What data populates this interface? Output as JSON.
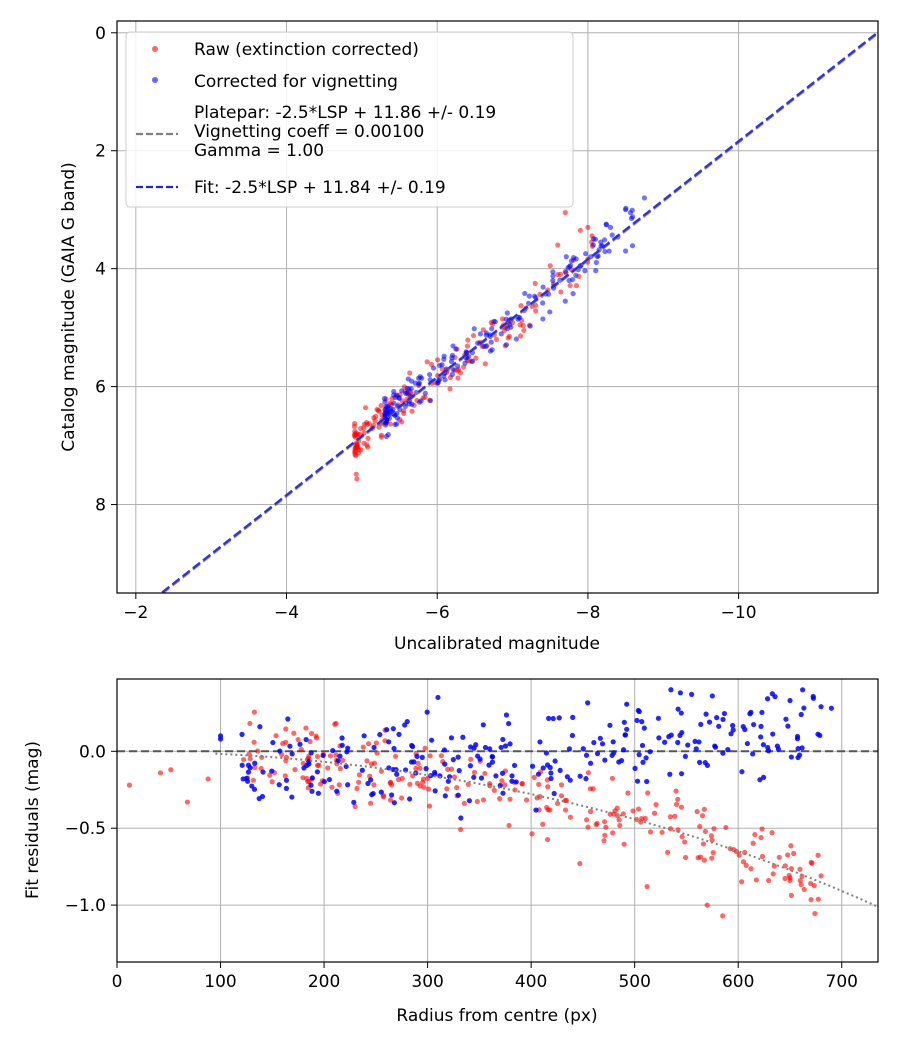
{
  "chart_data": [
    {
      "type": "scatter",
      "xlabel": "Uncalibrated magnitude",
      "ylabel": "Catalog magnitude (GAIA G band)",
      "xlim": [
        -1.75,
        -11.85
      ],
      "ylim": [
        -0.2,
        9.5
      ],
      "x_inverted": true,
      "y_inverted": true,
      "grid": true,
      "legend_position": "upper-left",
      "xticks": [
        -2,
        -4,
        -6,
        -8,
        -10
      ],
      "xtick_labels": [
        "−2",
        "−4",
        "−6",
        "−8",
        "−10"
      ],
      "yticks": [
        0,
        2,
        4,
        6,
        8
      ],
      "ytick_labels": [
        "0",
        "2",
        "4",
        "6",
        "8"
      ],
      "series": [
        {
          "name": "Raw (extinction corrected)",
          "kind": "scatter",
          "color": "#ff0000",
          "cloud": {
            "count": 170,
            "x_range": [
              -4.9,
              -8.1
            ],
            "intercept": 11.86,
            "spread": 0.18,
            "seed": 11
          },
          "points": [
            [
              -7.7,
              3.05
            ],
            [
              -7.9,
              3.35
            ],
            [
              -8.0,
              3.3
            ],
            [
              -8.05,
              3.55
            ],
            [
              -7.6,
              3.6
            ],
            [
              -7.5,
              3.95
            ],
            [
              -7.3,
              4.25
            ],
            [
              -7.6,
              4.1
            ]
          ]
        },
        {
          "name": "Corrected for vignetting",
          "kind": "scatter",
          "color": "#0000ff",
          "cloud": {
            "count": 190,
            "x_range": [
              -5.3,
              -8.6
            ],
            "intercept": 11.84,
            "spread": 0.16,
            "seed": 23
          },
          "points": [
            [
              -8.75,
              2.8
            ],
            [
              -8.5,
              3.0
            ],
            [
              -8.3,
              3.3
            ],
            [
              -8.1,
              3.5
            ],
            [
              -8.5,
              3.7
            ],
            [
              -7.9,
              3.95
            ],
            [
              -7.75,
              4.2
            ],
            [
              -7.7,
              4.55
            ]
          ]
        },
        {
          "name": "Platepar: -2.5*LSP + 11.86 +/- 0.19\nVignetting coeff = 0.00100\nGamma = 1.00",
          "kind": "line",
          "color": "#808080",
          "dash": "dashed",
          "slope_lsp": -2.5,
          "intercept": 11.86,
          "x_range": [
            -2.35,
            -11.85
          ]
        },
        {
          "name": "Fit: -2.5*LSP + 11.84 +/- 0.19",
          "kind": "line",
          "color": "#2222dd",
          "dash": "dashed",
          "slope_lsp": -2.5,
          "intercept": 11.84,
          "x_range": [
            -2.35,
            -11.85
          ]
        }
      ]
    },
    {
      "type": "scatter",
      "xlabel": "Radius from centre (px)",
      "ylabel": "Fit residuals (mag)",
      "xlim": [
        0,
        735
      ],
      "ylim": [
        -1.37,
        0.47
      ],
      "grid": true,
      "xticks": [
        0,
        100,
        200,
        300,
        400,
        500,
        600,
        700
      ],
      "xtick_labels": [
        "0",
        "100",
        "200",
        "300",
        "400",
        "500",
        "600",
        "700"
      ],
      "yticks": [
        0.0,
        -0.5,
        -1.0
      ],
      "ytick_labels": [
        "0.0",
        "−0.5",
        "−1.0"
      ],
      "series": [
        {
          "name": "Raw residuals",
          "kind": "scatter",
          "color": "#ff0000",
          "cloud": {
            "count": 260,
            "x_range": [
              120,
              680
            ],
            "model": "vignetting",
            "coeff": 0.001,
            "spread": 0.12,
            "seed": 31
          },
          "points": [
            [
              12,
              -0.22
            ],
            [
              42,
              -0.14
            ],
            [
              52,
              -0.12
            ],
            [
              68,
              -0.33
            ],
            [
              88,
              -0.18
            ],
            [
              570,
              -1.0
            ],
            [
              585,
              -1.07
            ],
            [
              680,
              -0.81
            ],
            [
              650,
              -0.84
            ],
            [
              512,
              -0.88
            ],
            [
              447,
              -0.73
            ]
          ]
        },
        {
          "name": "Vignetting-corrected residuals",
          "kind": "scatter",
          "color": "#0000ff",
          "cloud": {
            "count": 260,
            "x_range": [
              120,
              680
            ],
            "model": "flat",
            "spread": 0.14,
            "seed": 47
          },
          "points": [
            [
              100,
              0.1
            ],
            [
              100,
              0.08
            ],
            [
              165,
              0.21
            ],
            [
              138,
              0.16
            ],
            [
              310,
              0.35
            ],
            [
              535,
              0.4
            ],
            [
              555,
              0.37
            ],
            [
              680,
              0.29
            ],
            [
              650,
              0.33
            ],
            [
              690,
              0.28
            ],
            [
              575,
              0.36
            ]
          ]
        },
        {
          "name": "Zero line",
          "kind": "hline",
          "y": 0.0,
          "color": "#555555",
          "dash": "dashed"
        },
        {
          "name": "Vignetting model",
          "kind": "curve",
          "model": "vignetting",
          "coeff": 0.001,
          "color": "#808080",
          "dash": "dotted",
          "x_range": [
            95,
            735
          ]
        }
      ]
    }
  ]
}
